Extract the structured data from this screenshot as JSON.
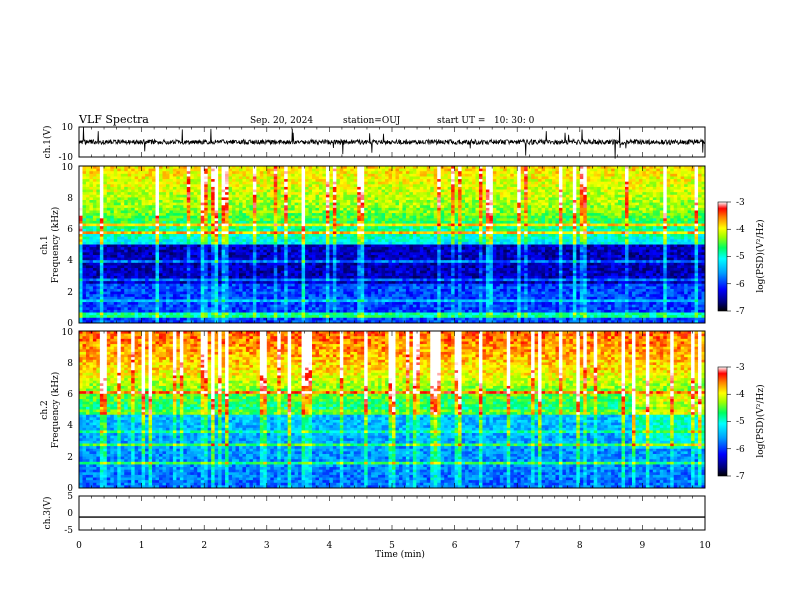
{
  "header": {
    "title": "VLF Spectra",
    "date": "Sep. 20, 2024",
    "station": "station=OUJ",
    "start": "start UT =   10: 30: 0"
  },
  "chart_data": [
    {
      "type": "line",
      "name": "ch1-waveform",
      "ylabel": "ch.1(V)",
      "ylim": [
        -10,
        10
      ],
      "yticks": [
        "10",
        "-10"
      ],
      "xlim": [
        0,
        10
      ],
      "baseline": 0
    },
    {
      "type": "heatmap",
      "name": "ch1-spectrogram",
      "ylabel_channel": "ch.1",
      "ylabel": "Frequency (kHz)",
      "ylim": [
        0,
        10
      ],
      "yticks": [
        "0",
        "2",
        "4",
        "6",
        "8",
        "10"
      ],
      "xlim": [
        0,
        10
      ],
      "colorbar": {
        "label": "log(PSD)(V²/Hz)",
        "ticks": [
          "-3",
          "-4",
          "-5",
          "-6",
          "-7"
        ],
        "range": [
          -7,
          -3
        ]
      }
    },
    {
      "type": "heatmap",
      "name": "ch2-spectrogram",
      "ylabel_channel": "ch.2",
      "ylabel": "Frequency (kHz)",
      "ylim": [
        0,
        10
      ],
      "yticks": [
        "0",
        "2",
        "4",
        "6",
        "8",
        "10"
      ],
      "xlim": [
        0,
        10
      ],
      "colorbar": {
        "label": "log(PSD)(V²/Hz)",
        "ticks": [
          "-3",
          "-4",
          "-5",
          "-6",
          "-7"
        ],
        "range": [
          -7,
          -3
        ]
      }
    },
    {
      "type": "line",
      "name": "ch3-waveform",
      "ylabel": "ch.3(V)",
      "ylim": [
        -5,
        5
      ],
      "yticks": [
        "5",
        "0",
        "-5"
      ],
      "xlim": [
        0,
        10
      ],
      "values_constant": -1.2
    }
  ],
  "xaxis": {
    "label": "Time (min)",
    "ticks": [
      "0",
      "1",
      "2",
      "3",
      "4",
      "5",
      "6",
      "7",
      "8",
      "9",
      "10"
    ]
  }
}
